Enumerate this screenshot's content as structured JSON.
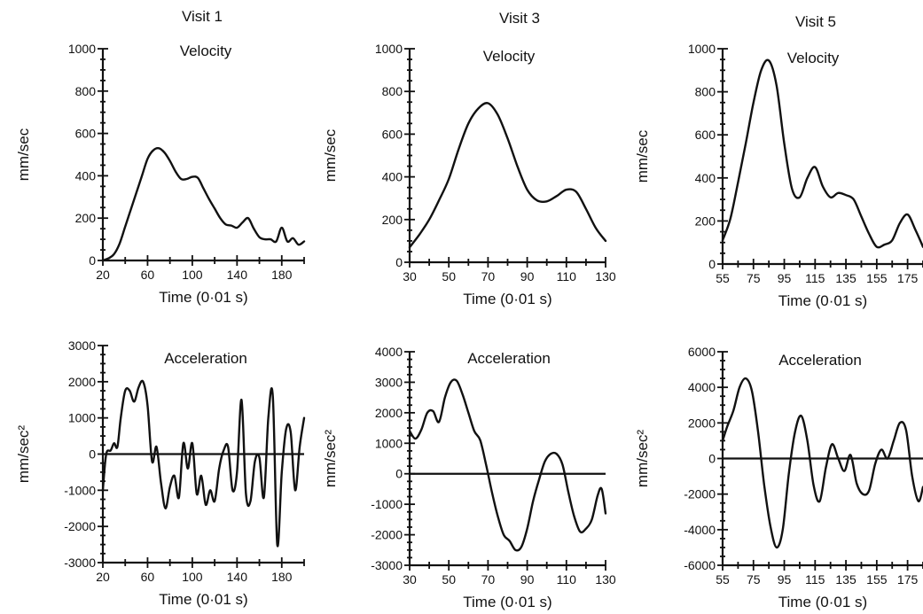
{
  "chart_data": [
    {
      "id": "v1-vel",
      "type": "line",
      "visit_title": "Visit 1",
      "title": "Velocity",
      "xlabel": "Time (0·01 s)",
      "ylabel": "mm/sec",
      "xlim": [
        20,
        200
      ],
      "ylim": [
        0,
        1000
      ],
      "x_ticks": [
        20,
        60,
        100,
        140,
        180
      ],
      "y_ticks": [
        0,
        200,
        400,
        600,
        800,
        1000
      ],
      "zero_line": false,
      "series": [
        {
          "x": [
            20,
            25,
            30,
            35,
            40,
            45,
            50,
            55,
            60,
            65,
            70,
            75,
            80,
            85,
            90,
            95,
            100,
            105,
            110,
            115,
            120,
            125,
            130,
            135,
            140,
            145,
            150,
            155,
            160,
            165,
            170,
            175,
            180,
            185,
            190,
            195,
            200
          ],
          "y": [
            0,
            10,
            30,
            80,
            160,
            240,
            320,
            400,
            480,
            520,
            530,
            510,
            470,
            420,
            385,
            385,
            395,
            390,
            340,
            290,
            245,
            200,
            170,
            165,
            155,
            180,
            200,
            150,
            110,
            100,
            100,
            90,
            155,
            90,
            105,
            75,
            90
          ]
        }
      ]
    },
    {
      "id": "v3-vel",
      "type": "line",
      "visit_title": "Visit 3",
      "title": "Velocity",
      "xlabel": "Time (0·01 s)",
      "ylabel": "mm/sec",
      "xlim": [
        30,
        130
      ],
      "ylim": [
        0,
        1000
      ],
      "x_ticks": [
        30,
        50,
        70,
        90,
        110,
        130
      ],
      "y_ticks": [
        0,
        200,
        400,
        600,
        800,
        1000
      ],
      "zero_line": false,
      "series": [
        {
          "x": [
            30,
            35,
            40,
            45,
            50,
            55,
            60,
            65,
            70,
            75,
            80,
            85,
            90,
            95,
            100,
            105,
            110,
            115,
            120,
            125,
            130
          ],
          "y": [
            70,
            130,
            200,
            290,
            390,
            530,
            650,
            720,
            745,
            690,
            580,
            450,
            340,
            290,
            285,
            310,
            340,
            330,
            250,
            160,
            100
          ]
        }
      ]
    },
    {
      "id": "v5-vel",
      "type": "line",
      "visit_title": "Visit 5",
      "title": "Velocity",
      "xlabel": "Time (0·01 s)",
      "ylabel": "mm/sec",
      "xlim": [
        55,
        185
      ],
      "ylim": [
        0,
        1000
      ],
      "x_ticks": [
        55,
        75,
        95,
        115,
        135,
        155,
        175
      ],
      "y_ticks": [
        0,
        200,
        400,
        600,
        800,
        1000
      ],
      "zero_line": false,
      "series": [
        {
          "x": [
            55,
            60,
            65,
            70,
            75,
            80,
            85,
            90,
            95,
            100,
            105,
            110,
            115,
            120,
            125,
            130,
            135,
            140,
            145,
            150,
            155,
            160,
            165,
            170,
            175,
            180,
            185
          ],
          "y": [
            110,
            210,
            380,
            560,
            750,
            900,
            945,
            830,
            560,
            350,
            310,
            400,
            450,
            360,
            310,
            330,
            320,
            300,
            220,
            140,
            80,
            90,
            110,
            190,
            230,
            160,
            80
          ]
        }
      ]
    },
    {
      "id": "v1-acc",
      "type": "line",
      "title": "Acceleration",
      "xlabel": "Time (0·01 s)",
      "ylabel": "mm/sec²",
      "xlim": [
        20,
        200
      ],
      "ylim": [
        -3000,
        3000
      ],
      "x_ticks": [
        20,
        60,
        100,
        140,
        180
      ],
      "y_ticks": [
        -3000,
        -2000,
        -1000,
        0,
        1000,
        2000,
        3000
      ],
      "zero_line": true,
      "series": [
        {
          "x": [
            20,
            23,
            27,
            30,
            33,
            36,
            40,
            44,
            48,
            52,
            56,
            60,
            64,
            68,
            72,
            76,
            80,
            84,
            88,
            92,
            96,
            100,
            104,
            108,
            112,
            116,
            120,
            124,
            128,
            132,
            136,
            140,
            144,
            148,
            152,
            156,
            160,
            164,
            168,
            172,
            176,
            180,
            184,
            188,
            192,
            196,
            200
          ],
          "y": [
            -1000,
            0,
            100,
            300,
            200,
            1000,
            1750,
            1750,
            1450,
            1850,
            2000,
            1350,
            -200,
            200,
            -800,
            -1500,
            -900,
            -600,
            -1200,
            300,
            -400,
            300,
            -1100,
            -600,
            -1400,
            -1000,
            -1300,
            -400,
            100,
            200,
            -1000,
            -500,
            1500,
            -1100,
            -1300,
            -200,
            -100,
            -1200,
            1000,
            1600,
            -2500,
            -500,
            700,
            600,
            -1000,
            200,
            1000
          ]
        }
      ]
    },
    {
      "id": "v3-acc",
      "type": "line",
      "title": "Acceleration",
      "xlabel": "Time (0·01 s)",
      "ylabel": "mm/sec²",
      "xlim": [
        30,
        130
      ],
      "ylim": [
        -3000,
        4000
      ],
      "x_ticks": [
        30,
        50,
        70,
        90,
        110,
        130
      ],
      "y_ticks": [
        -3000,
        -2000,
        -1000,
        0,
        1000,
        2000,
        3000,
        4000
      ],
      "zero_line": true,
      "series": [
        {
          "x": [
            30,
            33,
            36,
            39,
            42,
            45,
            48,
            51,
            54,
            57,
            60,
            63,
            66,
            69,
            72,
            75,
            78,
            81,
            84,
            87,
            90,
            93,
            96,
            99,
            102,
            105,
            108,
            111,
            114,
            117,
            120,
            123,
            126,
            128,
            130
          ],
          "y": [
            1400,
            1150,
            1450,
            2000,
            2050,
            1700,
            2500,
            3000,
            3050,
            2600,
            2000,
            1400,
            1100,
            300,
            -600,
            -1400,
            -2000,
            -2200,
            -2500,
            -2400,
            -1800,
            -900,
            -200,
            400,
            650,
            650,
            300,
            -600,
            -1400,
            -1900,
            -1800,
            -1500,
            -700,
            -500,
            -1300
          ]
        }
      ]
    },
    {
      "id": "v5-acc",
      "type": "line",
      "title": "Acceleration",
      "xlabel": "Time (0·01 s)",
      "ylabel": "mm/sec²",
      "xlim": [
        55,
        185
      ],
      "ylim": [
        -6000,
        6000
      ],
      "x_ticks": [
        55,
        75,
        95,
        115,
        135,
        155,
        175
      ],
      "y_ticks": [
        -6000,
        -4000,
        -2000,
        0,
        2000,
        4000,
        6000
      ],
      "zero_line": true,
      "series": [
        {
          "x": [
            55,
            58,
            62,
            66,
            70,
            74,
            78,
            82,
            86,
            90,
            94,
            98,
            102,
            106,
            110,
            114,
            118,
            122,
            126,
            130,
            134,
            138,
            142,
            146,
            150,
            154,
            158,
            162,
            166,
            170,
            174,
            178,
            182,
            185
          ],
          "y": [
            1000,
            1800,
            2700,
            4000,
            4500,
            3800,
            1500,
            -1500,
            -3800,
            -5000,
            -4000,
            -800,
            1500,
            2400,
            1000,
            -1500,
            -2400,
            -500,
            800,
            0,
            -700,
            200,
            -1400,
            -2000,
            -1800,
            -300,
            500,
            0,
            1000,
            2000,
            1600,
            -1000,
            -2400,
            -1600
          ]
        }
      ]
    }
  ]
}
